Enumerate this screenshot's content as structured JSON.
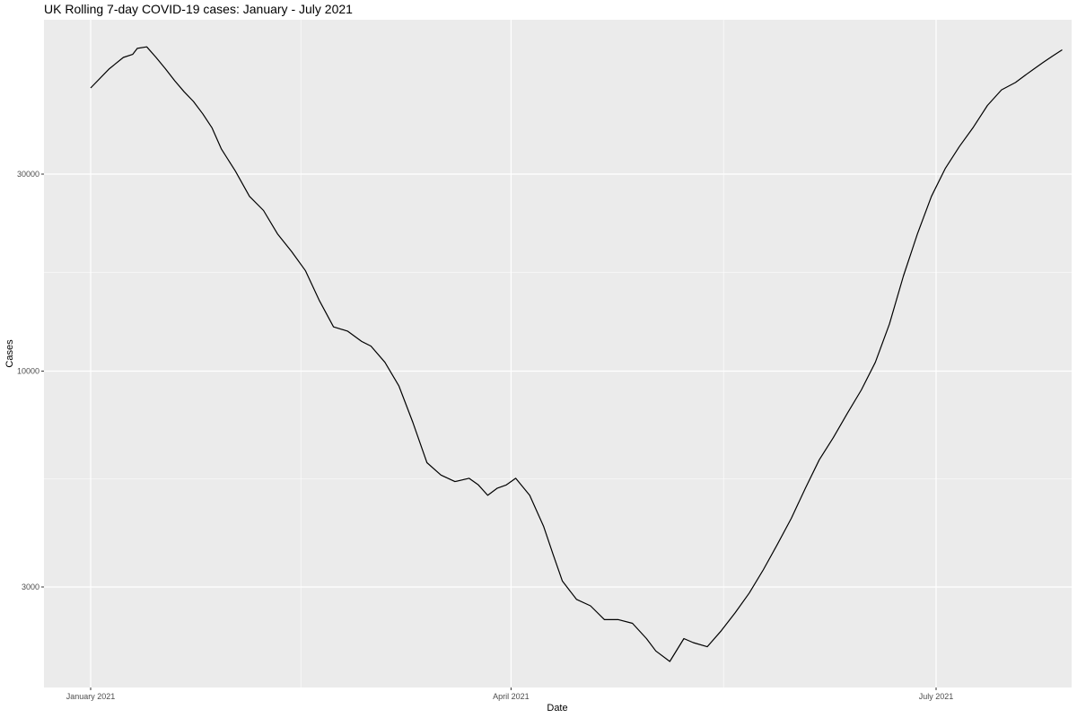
{
  "chart_data": {
    "type": "line",
    "title": "UK Rolling 7-day COVID-19 cases: January - July 2021",
    "xlabel": "Date",
    "ylabel": "Cases",
    "y_scale": "log",
    "grid": true,
    "x_ticks": [
      {
        "date": "2021-01-01",
        "label": "January 2021"
      },
      {
        "date": "2021-04-01",
        "label": "April 2021"
      },
      {
        "date": "2021-07-01",
        "label": "July 2021"
      }
    ],
    "y_ticks": [
      {
        "value": 3000,
        "label": "3000"
      },
      {
        "value": 10000,
        "label": "10000"
      },
      {
        "value": 30000,
        "label": "30000"
      }
    ],
    "line_color": "#000000",
    "panel_color": "#ebebeb",
    "grid_color": "#ffffff",
    "series": [
      {
        "x": [
          "2021-01-01",
          "2021-01-05",
          "2021-01-08",
          "2021-01-10",
          "2021-01-11",
          "2021-01-13",
          "2021-01-15",
          "2021-01-17",
          "2021-01-19",
          "2021-01-21",
          "2021-01-23",
          "2021-01-25",
          "2021-01-27",
          "2021-01-29",
          "2021-02-01",
          "2021-02-04",
          "2021-02-07",
          "2021-02-10",
          "2021-02-13",
          "2021-02-16",
          "2021-02-19",
          "2021-02-22",
          "2021-02-25",
          "2021-02-28",
          "2021-03-02",
          "2021-03-05",
          "2021-03-08",
          "2021-03-11",
          "2021-03-14",
          "2021-03-17",
          "2021-03-20",
          "2021-03-23",
          "2021-03-25",
          "2021-03-27",
          "2021-03-29",
          "2021-03-31",
          "2021-04-02",
          "2021-04-05",
          "2021-04-08",
          "2021-04-10",
          "2021-04-12",
          "2021-04-15",
          "2021-04-18",
          "2021-04-21",
          "2021-04-24",
          "2021-04-27",
          "2021-04-30",
          "2021-05-02",
          "2021-05-05",
          "2021-05-08",
          "2021-05-10",
          "2021-05-13",
          "2021-05-16",
          "2021-05-19",
          "2021-05-22",
          "2021-05-25",
          "2021-05-28",
          "2021-05-31",
          "2021-06-03",
          "2021-06-06",
          "2021-06-09",
          "2021-06-12",
          "2021-06-15",
          "2021-06-18",
          "2021-06-21",
          "2021-06-24",
          "2021-06-27",
          "2021-06-30",
          "2021-07-03",
          "2021-07-06",
          "2021-07-09",
          "2021-07-12",
          "2021-07-15",
          "2021-07-18",
          "2021-07-20",
          "2021-07-22",
          "2021-07-24",
          "2021-07-26",
          "2021-07-28"
        ],
        "values": [
          48500,
          54000,
          57500,
          58500,
          60500,
          61000,
          57500,
          54000,
          50500,
          47500,
          45000,
          42000,
          38800,
          34500,
          30500,
          26500,
          24500,
          21500,
          19500,
          17500,
          14800,
          12800,
          12500,
          11800,
          11500,
          10500,
          9200,
          7500,
          6000,
          5600,
          5400,
          5500,
          5300,
          5000,
          5200,
          5300,
          5500,
          5000,
          4200,
          3600,
          3100,
          2800,
          2700,
          2500,
          2500,
          2450,
          2250,
          2100,
          1980,
          2250,
          2200,
          2150,
          2350,
          2600,
          2900,
          3300,
          3800,
          4400,
          5200,
          6100,
          6900,
          7900,
          9000,
          10500,
          13000,
          17000,
          21500,
          26500,
          31000,
          35000,
          39000,
          44000,
          48000,
          50000,
          52000,
          54000,
          56000,
          58000,
          60000
        ]
      }
    ]
  }
}
